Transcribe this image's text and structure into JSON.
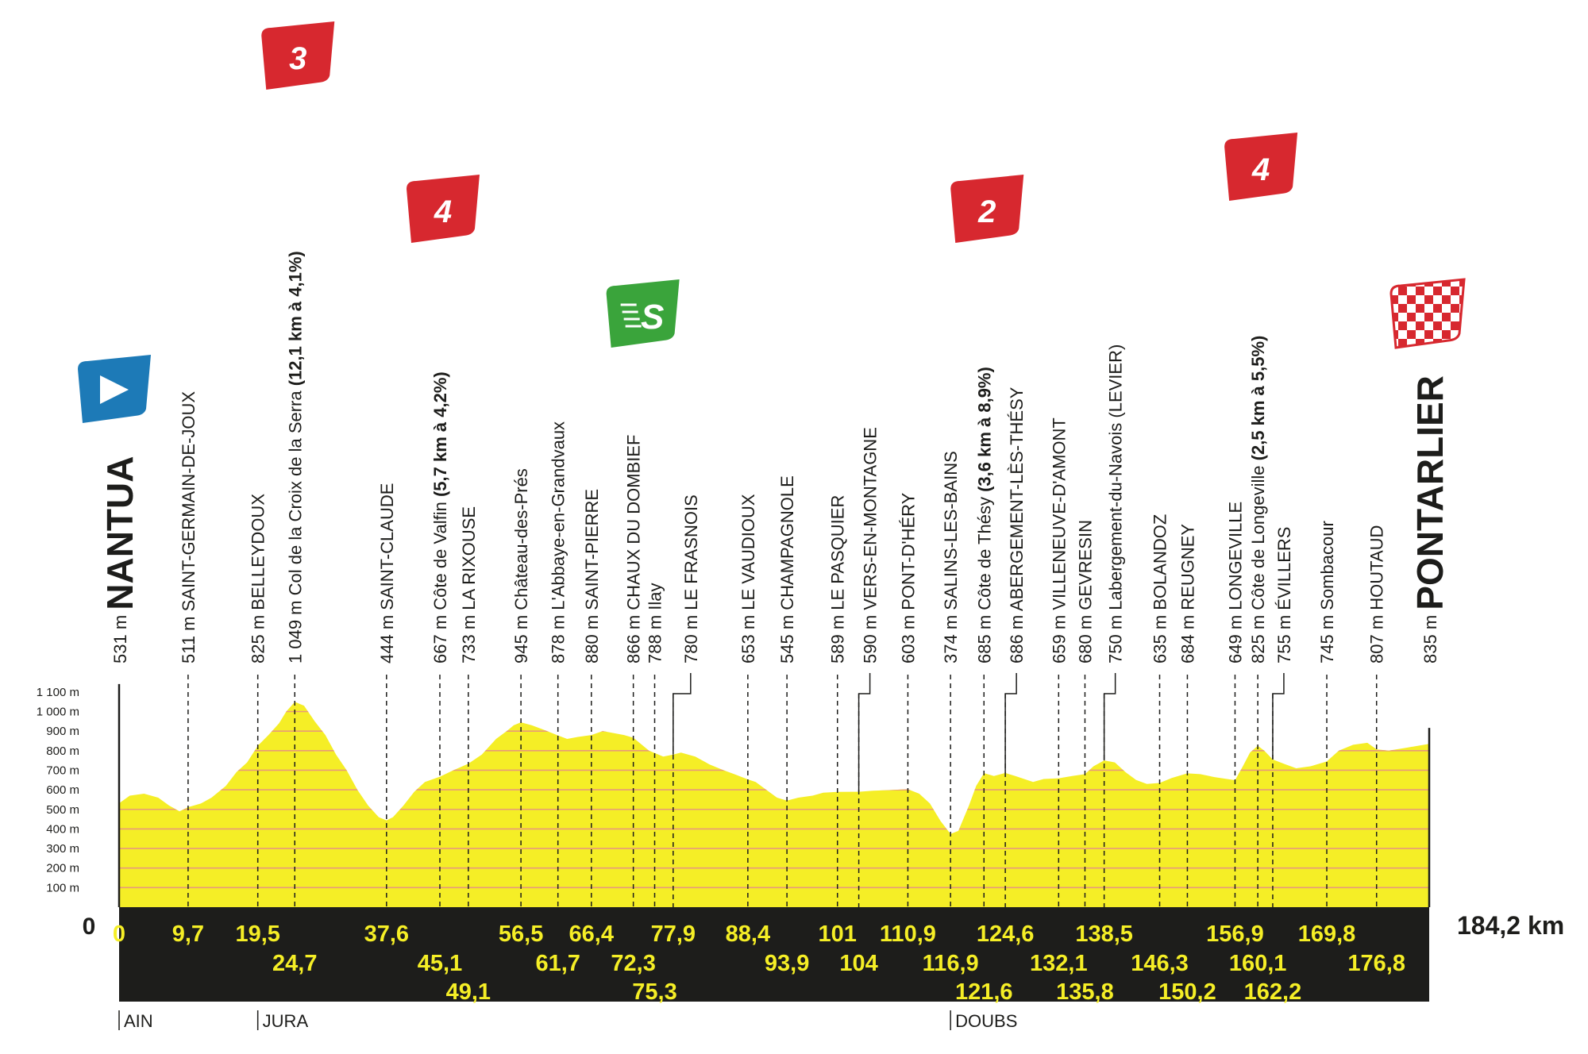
{
  "chart_data": {
    "type": "area",
    "title": "",
    "xlabel": "",
    "ylabel": "",
    "x_unit": "km",
    "y_unit": "m",
    "xlim": [
      0,
      184.2
    ],
    "ylim": [
      0,
      1100
    ],
    "total_distance_label": "184,2 km",
    "zero_label": "0",
    "y_ticks": [
      {
        "value": 100,
        "label": "100 m"
      },
      {
        "value": 200,
        "label": "200 m"
      },
      {
        "value": 300,
        "label": "300 m"
      },
      {
        "value": 400,
        "label": "400 m"
      },
      {
        "value": 500,
        "label": "500 m"
      },
      {
        "value": 600,
        "label": "600 m"
      },
      {
        "value": 700,
        "label": "700 m"
      },
      {
        "value": 800,
        "label": "800 m"
      },
      {
        "value": 900,
        "label": "900 m"
      },
      {
        "value": 1000,
        "label": "1 000 m"
      },
      {
        "value": 1100,
        "label": "1 100 m"
      }
    ],
    "profile": [
      [
        0,
        531
      ],
      [
        1.5,
        570
      ],
      [
        3.5,
        580
      ],
      [
        5.5,
        560
      ],
      [
        7,
        520
      ],
      [
        8.5,
        490
      ],
      [
        9.7,
        511
      ],
      [
        11.5,
        530
      ],
      [
        13,
        560
      ],
      [
        15,
        620
      ],
      [
        16.5,
        690
      ],
      [
        18,
        740
      ],
      [
        19.5,
        825
      ],
      [
        21,
        880
      ],
      [
        22.5,
        940
      ],
      [
        23.5,
        1000
      ],
      [
        24.7,
        1049
      ],
      [
        26,
        1030
      ],
      [
        27.5,
        950
      ],
      [
        29,
        880
      ],
      [
        30.5,
        780
      ],
      [
        32,
        700
      ],
      [
        33.5,
        600
      ],
      [
        35,
        520
      ],
      [
        36.5,
        460
      ],
      [
        37.6,
        444
      ],
      [
        38.5,
        460
      ],
      [
        40,
        520
      ],
      [
        41.5,
        590
      ],
      [
        43,
        640
      ],
      [
        45.1,
        667
      ],
      [
        47,
        700
      ],
      [
        49.1,
        733
      ],
      [
        51,
        780
      ],
      [
        53,
        860
      ],
      [
        54.5,
        900
      ],
      [
        55.5,
        930
      ],
      [
        56.5,
        945
      ],
      [
        58,
        930
      ],
      [
        59.5,
        910
      ],
      [
        61.7,
        878
      ],
      [
        63,
        860
      ],
      [
        64.5,
        870
      ],
      [
        66.4,
        880
      ],
      [
        68,
        900
      ],
      [
        69.5,
        890
      ],
      [
        71,
        880
      ],
      [
        72.3,
        866
      ],
      [
        73.5,
        830
      ],
      [
        74.5,
        800
      ],
      [
        75.3,
        788
      ],
      [
        76.5,
        770
      ],
      [
        77.9,
        780
      ],
      [
        79,
        790
      ],
      [
        81,
        770
      ],
      [
        83,
        730
      ],
      [
        85,
        700
      ],
      [
        86.5,
        680
      ],
      [
        88.4,
        653
      ],
      [
        89.5,
        640
      ],
      [
        91,
        600
      ],
      [
        92.5,
        560
      ],
      [
        93.9,
        545
      ],
      [
        95.5,
        560
      ],
      [
        97.5,
        570
      ],
      [
        99,
        585
      ],
      [
        101,
        589
      ],
      [
        103,
        590
      ],
      [
        104,
        590
      ],
      [
        106,
        595
      ],
      [
        108,
        598
      ],
      [
        110.9,
        603
      ],
      [
        112.5,
        580
      ],
      [
        114,
        530
      ],
      [
        115.5,
        440
      ],
      [
        116.9,
        374
      ],
      [
        118,
        390
      ],
      [
        119.5,
        520
      ],
      [
        120.5,
        620
      ],
      [
        121.6,
        685
      ],
      [
        123,
        670
      ],
      [
        124.6,
        686
      ],
      [
        126,
        670
      ],
      [
        128.5,
        640
      ],
      [
        130,
        655
      ],
      [
        132.1,
        659
      ],
      [
        134,
        670
      ],
      [
        135.8,
        680
      ],
      [
        137,
        720
      ],
      [
        138.5,
        750
      ],
      [
        140,
        740
      ],
      [
        141.5,
        690
      ],
      [
        143,
        650
      ],
      [
        144.5,
        630
      ],
      [
        146.3,
        635
      ],
      [
        148,
        660
      ],
      [
        150.2,
        684
      ],
      [
        152,
        680
      ],
      [
        154,
        665
      ],
      [
        156.9,
        649
      ],
      [
        158,
        720
      ],
      [
        159,
        790
      ],
      [
        160.1,
        825
      ],
      [
        161,
        800
      ],
      [
        162.2,
        755
      ],
      [
        164,
        730
      ],
      [
        165.5,
        710
      ],
      [
        167.5,
        720
      ],
      [
        169.8,
        745
      ],
      [
        171.5,
        800
      ],
      [
        173.5,
        830
      ],
      [
        175.5,
        840
      ],
      [
        176.8,
        807
      ],
      [
        178.5,
        800
      ],
      [
        181,
        815
      ],
      [
        184.2,
        835
      ]
    ],
    "points": [
      {
        "km": 0,
        "km_label": "0",
        "alt": 531,
        "alt_label": "531 m",
        "name": "NANTUA",
        "kind": "start",
        "row": 0
      },
      {
        "km": 9.7,
        "km_label": "9,7",
        "alt": 511,
        "alt_label": "511 m",
        "name": "SAINT-GERMAIN-DE-JOUX",
        "kind": "place",
        "row": 0
      },
      {
        "km": 19.5,
        "km_label": "19,5",
        "alt": 825,
        "alt_label": "825 m",
        "name": "BELLEYDOUX",
        "kind": "place",
        "row": 0
      },
      {
        "km": 24.7,
        "km_label": "24,7",
        "alt": 1049,
        "alt_label": "1 049 m",
        "name": "Col de la Croix de la Serra",
        "climb_detail": "(12,1 km à 4,1%)",
        "kind": "climb",
        "cat": "3",
        "row": 1
      },
      {
        "km": 37.6,
        "km_label": "37,6",
        "alt": 444,
        "alt_label": "444 m",
        "name": "SAINT-CLAUDE",
        "kind": "place",
        "row": 0
      },
      {
        "km": 45.1,
        "km_label": "45,1",
        "alt": 667,
        "alt_label": "667 m",
        "name": "Côte de Valfin",
        "climb_detail": "(5,7 km à 4,2%)",
        "kind": "climb",
        "cat": "4",
        "row": 1
      },
      {
        "km": 49.1,
        "km_label": "49,1",
        "alt": 733,
        "alt_label": "733 m",
        "name": "LA RIXOUSE",
        "kind": "place",
        "row": 2
      },
      {
        "km": 56.5,
        "km_label": "56,5",
        "alt": 945,
        "alt_label": "945 m",
        "name": "Château-des-Prés",
        "kind": "place",
        "row": 0
      },
      {
        "km": 61.7,
        "km_label": "61,7",
        "alt": 878,
        "alt_label": "878 m",
        "name": "L'Abbaye-en-Grandvaux",
        "kind": "place",
        "row": 1
      },
      {
        "km": 66.4,
        "km_label": "66,4",
        "alt": 880,
        "alt_label": "880 m",
        "name": "SAINT-PIERRE",
        "kind": "place",
        "row": 0
      },
      {
        "km": 72.3,
        "km_label": "72,3",
        "alt": 866,
        "alt_label": "866 m",
        "name": "CHAUX DU DOMBIEF",
        "kind": "sprint",
        "row": 1
      },
      {
        "km": 75.3,
        "km_label": "75,3",
        "alt": 788,
        "alt_label": "788 m",
        "name": "Ilay",
        "kind": "place",
        "row": 2
      },
      {
        "km": 77.9,
        "km_label": "77,9",
        "alt": 780,
        "alt_label": "780 m",
        "name": "LE FRASNOIS",
        "kind": "place",
        "row": 0,
        "offset_dx": 22
      },
      {
        "km": 88.4,
        "km_label": "88,4",
        "alt": 653,
        "alt_label": "653 m",
        "name": "LE VAUDIOUX",
        "kind": "place",
        "row": 0
      },
      {
        "km": 93.9,
        "km_label": "93,9",
        "alt": 545,
        "alt_label": "545 m",
        "name": "CHAMPAGNOLE",
        "kind": "place",
        "row": 1
      },
      {
        "km": 101,
        "km_label": "101",
        "alt": 589,
        "alt_label": "589 m",
        "name": "LE PASQUIER",
        "kind": "place",
        "row": 0
      },
      {
        "km": 104,
        "km_label": "104",
        "alt": 590,
        "alt_label": "590 m",
        "name": "VERS-EN-MONTAGNE",
        "kind": "place",
        "row": 1,
        "offset_dx": 14
      },
      {
        "km": 110.9,
        "km_label": "110,9",
        "alt": 603,
        "alt_label": "603 m",
        "name": "PONT-D'HÉRY",
        "kind": "place",
        "row": 0
      },
      {
        "km": 116.9,
        "km_label": "116,9",
        "alt": 374,
        "alt_label": "374 m",
        "name": "SALINS-LES-BAINS",
        "kind": "place",
        "row": 1
      },
      {
        "km": 121.6,
        "km_label": "121,6",
        "alt": 685,
        "alt_label": "685 m",
        "name": "Côte de Thésy",
        "climb_detail": "(3,6 km à 8,9%)",
        "kind": "climb",
        "cat": "2",
        "row": 2
      },
      {
        "km": 124.6,
        "km_label": "124,6",
        "alt": 686,
        "alt_label": "686 m",
        "name": "ABERGEMENT-LÈS-THÉSY",
        "kind": "place",
        "row": 0,
        "offset_dx": 14
      },
      {
        "km": 132.1,
        "km_label": "132,1",
        "alt": 659,
        "alt_label": "659 m",
        "name": "VILLENEUVE-D'AMONT",
        "kind": "place",
        "row": 1
      },
      {
        "km": 135.8,
        "km_label": "135,8",
        "alt": 680,
        "alt_label": "680 m",
        "name": "GEVRESIN",
        "kind": "place",
        "row": 2
      },
      {
        "km": 138.5,
        "km_label": "138,5",
        "alt": 750,
        "alt_label": "750 m",
        "name": "Labergement-du-Navois (LEVIER)",
        "kind": "place",
        "row": 0,
        "offset_dx": 14
      },
      {
        "km": 146.3,
        "km_label": "146,3",
        "alt": 635,
        "alt_label": "635 m",
        "name": "BOLANDOZ",
        "kind": "place",
        "row": 1
      },
      {
        "km": 150.2,
        "km_label": "150,2",
        "alt": 684,
        "alt_label": "684 m",
        "name": "REUGNEY",
        "kind": "place",
        "row": 2
      },
      {
        "km": 156.9,
        "km_label": "156,9",
        "alt": 649,
        "alt_label": "649 m",
        "name": "LONGEVILLE",
        "kind": "place",
        "row": 0
      },
      {
        "km": 160.1,
        "km_label": "160,1",
        "alt": 825,
        "alt_label": "825 m",
        "name": "Côte de Longeville",
        "climb_detail": "(2,5 km à 5,5%)",
        "kind": "climb",
        "cat": "4",
        "row": 1
      },
      {
        "km": 162.2,
        "km_label": "162,2",
        "alt": 755,
        "alt_label": "755 m",
        "name": "ÉVILLERS",
        "kind": "place",
        "row": 2,
        "offset_dx": 14
      },
      {
        "km": 169.8,
        "km_label": "169,8",
        "alt": 745,
        "alt_label": "745 m",
        "name": "Sombacour",
        "kind": "place",
        "row": 0
      },
      {
        "km": 176.8,
        "km_label": "176,8",
        "alt": 807,
        "alt_label": "807 m",
        "name": "HOUTAUD",
        "kind": "place",
        "row": 1
      },
      {
        "km": 184.2,
        "km_label": "",
        "alt": 835,
        "alt_label": "835 m",
        "name": "PONTARLIER",
        "kind": "finish",
        "row": 0
      }
    ],
    "regions": [
      {
        "km": 0,
        "label": "AIN"
      },
      {
        "km": 19.5,
        "label": "JURA"
      },
      {
        "km": 116.9,
        "label": "DOUBS"
      }
    ],
    "markers": {
      "start_color": "#1d7ab7",
      "sprint_label": "S",
      "sprint_color": "#3aa43b",
      "climb_color": "#d7282f",
      "finish_red": "#d7282f"
    },
    "colors": {
      "fill": "#f5ee26",
      "grid": "#e89a7a",
      "band": "#1d1d1b",
      "band_text": "#f5ee26"
    }
  }
}
